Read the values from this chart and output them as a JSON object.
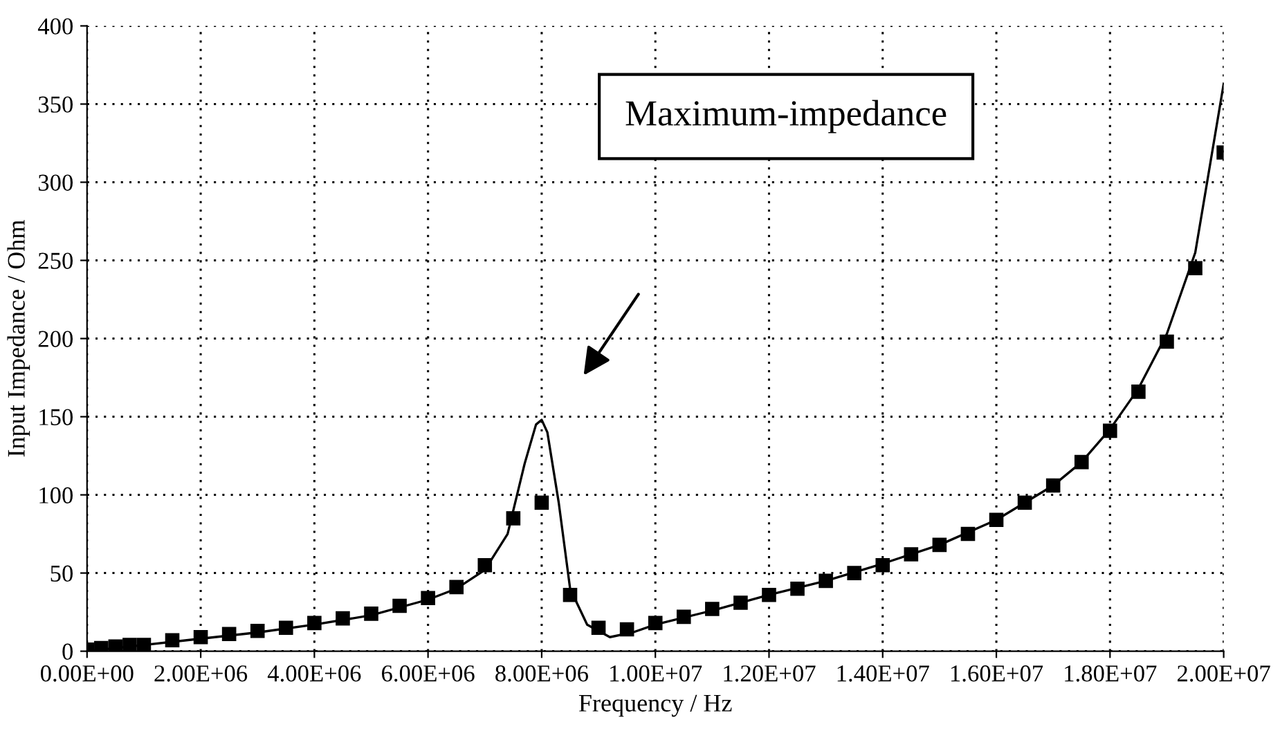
{
  "chart_data": {
    "type": "scatter",
    "xlabel": "Frequency / Hz",
    "ylabel": "Input Impedance / Ohm",
    "annotations": [
      "Maximum-impedance"
    ],
    "series": [
      {
        "type": "line",
        "color": "#000000",
        "marker": "none",
        "line_style": "solid",
        "x": [
          0,
          1000000,
          2000000,
          3000000,
          4000000,
          5000000,
          6000000,
          6500000,
          7000000,
          7400000,
          7700000,
          7900000,
          8000000,
          8100000,
          8300000,
          8500000,
          8800000,
          9200000,
          9600000,
          10000000,
          11000000,
          12000000,
          13000000,
          14000000,
          15000000,
          16000000,
          17000000,
          17500000,
          18000000,
          18500000,
          19000000,
          19500000,
          20000000
        ],
        "values": [
          0,
          4,
          8,
          12,
          17,
          23,
          33,
          40,
          52,
          75,
          120,
          145,
          148,
          140,
          95,
          40,
          17,
          9,
          12,
          17,
          26,
          36,
          45,
          56,
          68,
          84,
          106,
          121,
          142,
          168,
          203,
          255,
          363
        ]
      },
      {
        "color": "#000000",
        "marker": "square",
        "x": [
          0,
          250000,
          500000,
          750000,
          1000000,
          1500000,
          2000000,
          2500000,
          3000000,
          3500000,
          4000000,
          4500000,
          5000000,
          5500000,
          6000000,
          6500000,
          7000000,
          7500000,
          8000000,
          8500000,
          9000000,
          9500000,
          10000000,
          10500000,
          11000000,
          11500000,
          12000000,
          12500000,
          13000000,
          13500000,
          14000000,
          14500000,
          15000000,
          15500000,
          16000000,
          16500000,
          17000000,
          17500000,
          18000000,
          18500000,
          19000000,
          19500000,
          20000000
        ],
        "values": [
          1,
          2,
          3,
          4,
          4,
          7,
          9,
          11,
          13,
          15,
          18,
          21,
          24,
          29,
          34,
          41,
          55,
          85,
          95,
          36,
          15,
          14,
          18,
          22,
          27,
          31,
          36,
          40,
          45,
          50,
          55,
          62,
          68,
          75,
          84,
          95,
          106,
          121,
          141,
          166,
          198,
          245,
          319
        ]
      }
    ],
    "xlim": [
      0,
      20000000
    ],
    "ylim": [
      0,
      400
    ],
    "xticks": [
      {
        "value": 0,
        "label": "0.00E+00"
      },
      {
        "value": 2000000,
        "label": "2.00E+06"
      },
      {
        "value": 4000000,
        "label": "4.00E+06"
      },
      {
        "value": 6000000,
        "label": "6.00E+06"
      },
      {
        "value": 8000000,
        "label": "8.00E+06"
      },
      {
        "value": 10000000,
        "label": "1.00E+07"
      },
      {
        "value": 12000000,
        "label": "1.20E+07"
      },
      {
        "value": 14000000,
        "label": "1.40E+07"
      },
      {
        "value": 16000000,
        "label": "1.60E+07"
      },
      {
        "value": 18000000,
        "label": "1.80E+07"
      },
      {
        "value": 20000000,
        "label": "2.00E+07"
      }
    ],
    "yticks": [
      0,
      50,
      100,
      150,
      200,
      250,
      300,
      350,
      400
    ],
    "grid": true,
    "legend": false
  }
}
